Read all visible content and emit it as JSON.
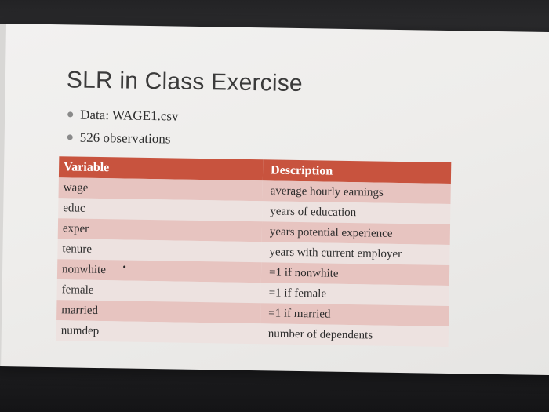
{
  "slide": {
    "title": "SLR in Class Exercise",
    "bullets": [
      "Data: WAGE1.csv",
      "526 observations"
    ]
  },
  "table": {
    "headers": [
      "Variable",
      "Description"
    ],
    "rows": [
      {
        "variable": "wage",
        "description": "average hourly earnings"
      },
      {
        "variable": "educ",
        "description": "years of education"
      },
      {
        "variable": "exper",
        "description": "years potential experience"
      },
      {
        "variable": "tenure",
        "description": "years with current employer"
      },
      {
        "variable": "nonwhite",
        "description": "=1 if nonwhite"
      },
      {
        "variable": "female",
        "description": "=1 if female"
      },
      {
        "variable": "married",
        "description": "=1 if married"
      },
      {
        "variable": "numdep",
        "description": "number of dependents"
      }
    ]
  },
  "colors": {
    "header_bg": "#c8533e",
    "row_odd": "#e7c4c0",
    "row_even": "#ede2e0"
  }
}
